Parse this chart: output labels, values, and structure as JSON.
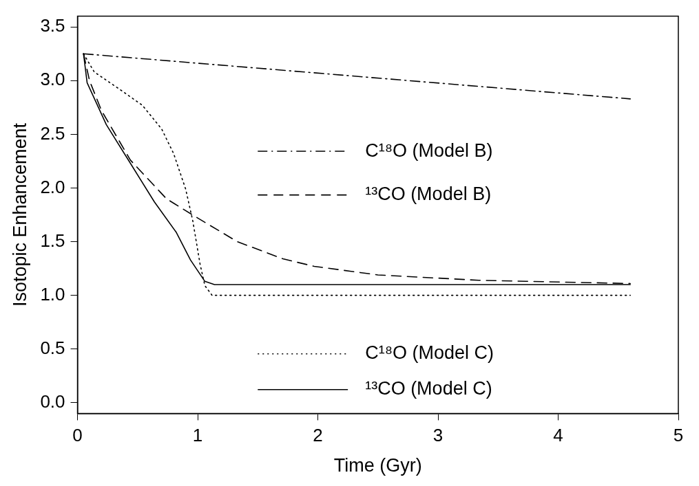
{
  "chart_data": {
    "type": "line",
    "xlabel": "Time (Gyr)",
    "ylabel": "Isotopic Enhancement",
    "xlim": [
      0,
      5
    ],
    "xticks": [
      0,
      1,
      2,
      3,
      4,
      5
    ],
    "ylim": [
      -0.1,
      3.6
    ],
    "yticks": [
      {
        "value": 0,
        "label": "0.0"
      },
      {
        "value": 0.5,
        "label": "0.5"
      },
      {
        "value": 1,
        "label": "1.0"
      },
      {
        "value": 1.5,
        "label": "1.5"
      },
      {
        "value": 2,
        "label": "2.0"
      },
      {
        "value": 2.5,
        "label": "2.5"
      },
      {
        "value": 3,
        "label": "3.0"
      },
      {
        "value": 3.5,
        "label": "3.5"
      }
    ],
    "grid": false,
    "legend": "right",
    "marker": "none",
    "series": [
      {
        "name": "C¹⁸O (Model B)",
        "color": "#000000",
        "line_style": "dashdot",
        "x": [
          0.05,
          4.6
        ],
        "values": [
          3.25,
          2.83
        ]
      },
      {
        "name": "¹³CO (Model B)",
        "color": "#000000",
        "line_style": "dashed",
        "x": [
          0.05,
          0.1,
          0.2,
          0.44,
          0.74,
          1.0,
          1.33,
          1.71,
          1.97,
          2.5,
          3.34,
          4.6
        ],
        "values": [
          3.25,
          3.0,
          2.72,
          2.26,
          1.9,
          1.72,
          1.5,
          1.34,
          1.27,
          1.19,
          1.14,
          1.11
        ]
      },
      {
        "name": "C¹⁸O (Model C)",
        "color": "#000000",
        "line_style": "dotted",
        "x": [
          0.05,
          0.14,
          0.35,
          0.54,
          0.7,
          0.8,
          0.9,
          0.96,
          1.02,
          1.06,
          1.12,
          4.6
        ],
        "values": [
          3.25,
          3.08,
          2.92,
          2.77,
          2.55,
          2.32,
          1.99,
          1.69,
          1.29,
          1.09,
          1.0,
          1.0
        ]
      },
      {
        "name": "¹³CO (Model C)",
        "color": "#000000",
        "line_style": "solid",
        "x": [
          0.05,
          0.08,
          0.24,
          0.44,
          0.64,
          0.82,
          0.94,
          1.06,
          1.14,
          4.6
        ],
        "values": [
          3.25,
          2.98,
          2.59,
          2.23,
          1.87,
          1.59,
          1.33,
          1.13,
          1.1,
          1.1
        ]
      }
    ]
  }
}
